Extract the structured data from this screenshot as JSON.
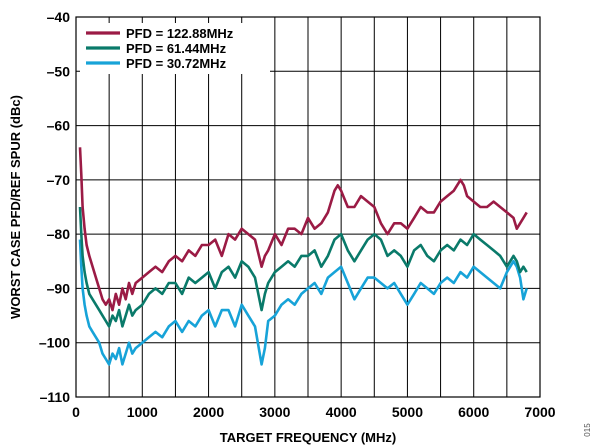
{
  "chart_data": {
    "type": "line",
    "xlabel": "TARGET FREQUENCY (MHz)",
    "ylabel": "WORST CASE PFD/REF SPUR (dBc)",
    "xlim": [
      0,
      7000
    ],
    "ylim": [
      -110,
      -40
    ],
    "xticks": [
      0,
      1000,
      2000,
      3000,
      4000,
      5000,
      6000,
      7000
    ],
    "yticks": [
      -110,
      -100,
      -90,
      -80,
      -70,
      -60,
      -50,
      -40
    ],
    "x_tick_labels": [
      "0",
      "1000",
      "2000",
      "3000",
      "4000",
      "5000",
      "6000",
      "7000"
    ],
    "y_tick_labels": [
      "–110",
      "–100",
      "–90",
      "–80",
      "–70",
      "–60",
      "–50",
      "–40"
    ],
    "grid": true,
    "legend_position": "top-left",
    "figure_id": "015",
    "series": [
      {
        "name": "PFD = 122.88MHz",
        "color": "#9b1b45",
        "x": [
          60,
          80,
          100,
          130,
          160,
          200,
          250,
          300,
          350,
          400,
          450,
          500,
          550,
          600,
          650,
          700,
          750,
          800,
          850,
          900,
          1000,
          1100,
          1200,
          1300,
          1400,
          1500,
          1600,
          1700,
          1800,
          1900,
          2000,
          2100,
          2200,
          2300,
          2400,
          2500,
          2600,
          2700,
          2800,
          2850,
          2900,
          3000,
          3100,
          3200,
          3300,
          3400,
          3500,
          3600,
          3700,
          3800,
          3900,
          3950,
          4000,
          4100,
          4200,
          4300,
          4400,
          4500,
          4600,
          4700,
          4800,
          4900,
          5000,
          5100,
          5200,
          5300,
          5400,
          5500,
          5600,
          5700,
          5800,
          5850,
          5900,
          6000,
          6100,
          6200,
          6300,
          6400,
          6500,
          6600,
          6650,
          6700,
          6750,
          6800
        ],
        "y": [
          -64,
          -69,
          -75,
          -79,
          -82,
          -84,
          -86,
          -88,
          -90,
          -92,
          -93,
          -92,
          -94,
          -91,
          -93,
          -90,
          -92,
          -89,
          -91,
          -89,
          -88,
          -87,
          -86,
          -87,
          -85,
          -84,
          -85,
          -83,
          -84,
          -82,
          -82,
          -81,
          -84,
          -80,
          -81,
          -79,
          -80,
          -81,
          -86,
          -84,
          -83,
          -80,
          -82,
          -79,
          -79,
          -80,
          -77,
          -79,
          -78,
          -76,
          -72,
          -71,
          -72,
          -75,
          -75,
          -73,
          -74,
          -75,
          -78,
          -80,
          -78,
          -78,
          -79,
          -77,
          -75,
          -76,
          -76,
          -74,
          -73,
          -72,
          -70,
          -71,
          -73,
          -74,
          -75,
          -75,
          -74,
          -75,
          -76,
          -77,
          -79,
          -78,
          -77,
          -76
        ]
      },
      {
        "name": "PFD = 61.44MHz",
        "color": "#0a7a6a",
        "x": [
          60,
          80,
          100,
          130,
          160,
          200,
          250,
          300,
          350,
          400,
          450,
          500,
          550,
          600,
          650,
          700,
          750,
          800,
          850,
          900,
          1000,
          1100,
          1200,
          1300,
          1400,
          1500,
          1600,
          1700,
          1800,
          1900,
          2000,
          2100,
          2200,
          2300,
          2400,
          2500,
          2600,
          2700,
          2800,
          2850,
          2900,
          3000,
          3100,
          3200,
          3300,
          3400,
          3500,
          3600,
          3700,
          3800,
          3900,
          4000,
          4100,
          4200,
          4300,
          4400,
          4500,
          4600,
          4700,
          4800,
          4900,
          5000,
          5100,
          5200,
          5300,
          5400,
          5500,
          5600,
          5700,
          5800,
          5900,
          6000,
          6100,
          6200,
          6300,
          6400,
          6500,
          6600,
          6650,
          6700,
          6750,
          6800
        ],
        "y": [
          -75,
          -80,
          -84,
          -87,
          -89,
          -91,
          -92,
          -93,
          -94,
          -95,
          -96,
          -97,
          -95,
          -96,
          -94,
          -97,
          -95,
          -93,
          -95,
          -94,
          -93,
          -91,
          -90,
          -91,
          -89,
          -89,
          -91,
          -88,
          -89,
          -88,
          -87,
          -90,
          -87,
          -86,
          -88,
          -85,
          -86,
          -88,
          -94,
          -91,
          -89,
          -87,
          -86,
          -85,
          -86,
          -84,
          -84,
          -83,
          -86,
          -84,
          -81,
          -80,
          -83,
          -85,
          -83,
          -81,
          -80,
          -81,
          -84,
          -83,
          -84,
          -86,
          -83,
          -82,
          -84,
          -85,
          -83,
          -82,
          -83,
          -81,
          -82,
          -80,
          -81,
          -82,
          -83,
          -84,
          -86,
          -84,
          -85,
          -87,
          -86,
          -87
        ]
      },
      {
        "name": "PFD = 30.72MHz",
        "color": "#17a3d8",
        "x": [
          60,
          80,
          100,
          130,
          160,
          200,
          250,
          300,
          350,
          400,
          450,
          500,
          550,
          600,
          650,
          700,
          750,
          800,
          850,
          900,
          1000,
          1100,
          1200,
          1300,
          1400,
          1500,
          1600,
          1700,
          1800,
          1900,
          2000,
          2100,
          2200,
          2300,
          2400,
          2500,
          2600,
          2700,
          2800,
          2850,
          2900,
          3000,
          3100,
          3200,
          3300,
          3400,
          3500,
          3600,
          3700,
          3800,
          3900,
          4000,
          4100,
          4200,
          4300,
          4400,
          4500,
          4600,
          4700,
          4800,
          4900,
          5000,
          5100,
          5200,
          5300,
          5400,
          5500,
          5600,
          5700,
          5800,
          5900,
          6000,
          6100,
          6200,
          6300,
          6400,
          6500,
          6600,
          6650,
          6700,
          6750,
          6800
        ],
        "y": [
          -81,
          -86,
          -90,
          -93,
          -95,
          -97,
          -98,
          -99,
          -100,
          -102,
          -103,
          -104,
          -102,
          -103,
          -101,
          -104,
          -102,
          -100,
          -102,
          -101,
          -100,
          -99,
          -98,
          -99,
          -97,
          -96,
          -98,
          -96,
          -97,
          -95,
          -94,
          -97,
          -94,
          -94,
          -97,
          -93,
          -95,
          -97,
          -104,
          -101,
          -96,
          -95,
          -93,
          -92,
          -93,
          -91,
          -90,
          -89,
          -91,
          -88,
          -87,
          -86,
          -89,
          -92,
          -90,
          -88,
          -88,
          -89,
          -90,
          -89,
          -91,
          -93,
          -91,
          -89,
          -90,
          -91,
          -89,
          -88,
          -89,
          -87,
          -88,
          -86,
          -87,
          -88,
          -89,
          -90,
          -87,
          -85,
          -86,
          -88,
          -92,
          -90
        ]
      }
    ]
  }
}
